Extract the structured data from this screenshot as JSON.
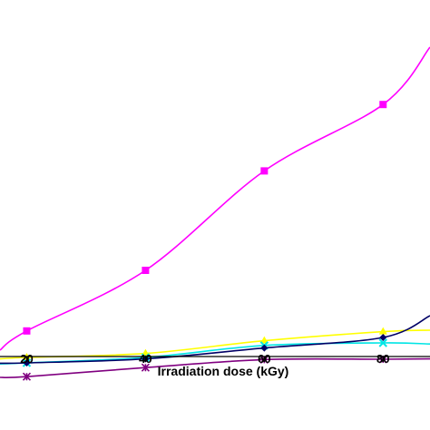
{
  "chart_data": {
    "type": "line",
    "xlabel": "Irradiation dose (kGy)",
    "ylabel": "",
    "xlim": [
      15.5,
      87.9
    ],
    "ylim": [
      0,
      100
    ],
    "x_ticks": [
      "20",
      "40",
      "60",
      "80"
    ],
    "grid": false,
    "series": [
      {
        "color": "#ff00ff",
        "marker": "square",
        "x": [
          15.5,
          20,
          40,
          60,
          80,
          87.9
        ],
        "y": [
          3.5,
          8.8,
          25.5,
          52.9,
          71.2,
          87.0
        ]
      },
      {
        "color": "#ffff00",
        "marker": "triangle",
        "x": [
          15.5,
          20,
          40,
          60,
          80,
          87.9
        ],
        "y": [
          1.1,
          1.5,
          2.6,
          6.1,
          8.6,
          9.0
        ]
      },
      {
        "color": "#00e5e5",
        "marker": "x",
        "x": [
          15.5,
          20,
          40,
          60,
          80,
          87.9
        ],
        "y": [
          -0.3,
          0.0,
          1.5,
          4.8,
          5.5,
          5.2
        ]
      },
      {
        "color": "#000066",
        "marker": "diamond",
        "x": [
          15.5,
          20,
          40,
          60,
          80,
          87.9
        ],
        "y": [
          -0.1,
          0.0,
          1.1,
          4.1,
          7.0,
          13.0
        ]
      },
      {
        "color": "#800080",
        "marker": "star",
        "x": [
          15.5,
          20,
          40,
          60,
          80,
          87.9
        ],
        "y": [
          -4.0,
          -3.8,
          -1.3,
          0.9,
          1.0,
          1.1
        ]
      }
    ]
  }
}
